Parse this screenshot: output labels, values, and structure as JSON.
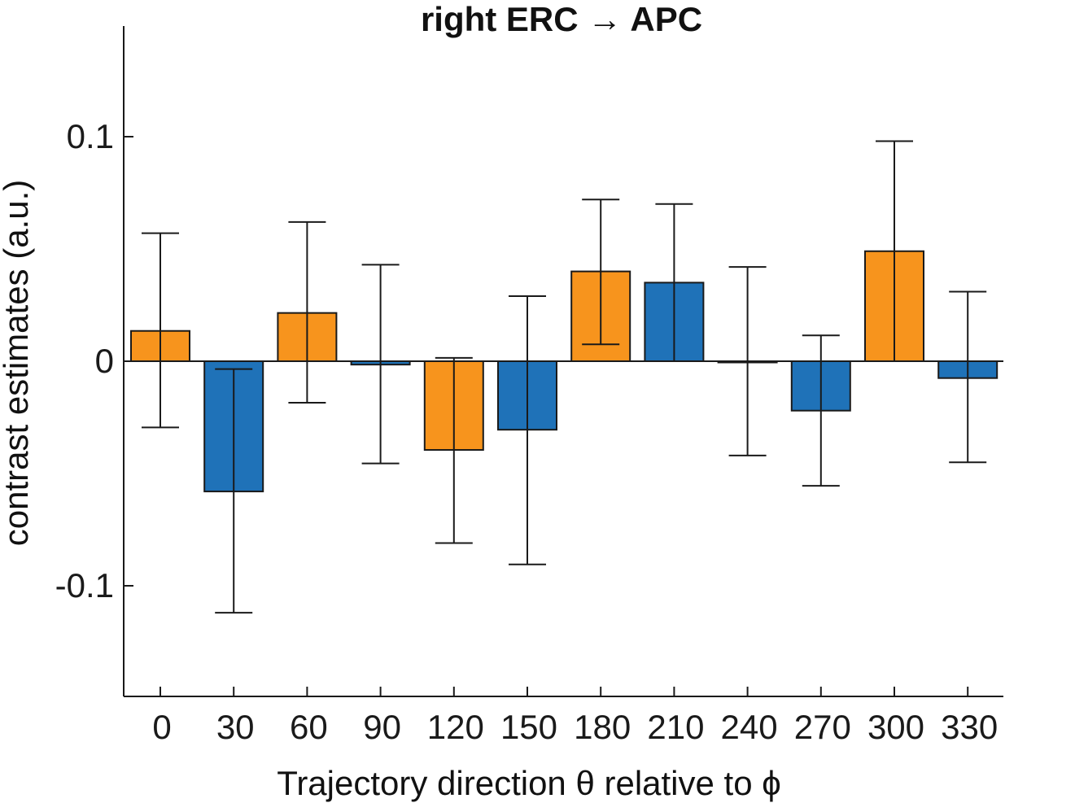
{
  "chart_data": {
    "type": "bar",
    "title": "right ERC → APC",
    "xlabel": "Trajectory direction θ relative to ϕ",
    "ylabel": "contrast estimates (a.u.)",
    "ylim": [
      -0.15,
      0.15
    ],
    "yticks": [
      0.1,
      0,
      -0.1
    ],
    "ytick_labels": [
      "0.1",
      "0",
      "-0.1"
    ],
    "categories": [
      "0",
      "30",
      "60",
      "90",
      "120",
      "150",
      "180",
      "210",
      "240",
      "270",
      "300",
      "330"
    ],
    "values": [
      0.0135,
      -0.058,
      0.0215,
      -0.0015,
      -0.0395,
      -0.0305,
      0.04,
      0.035,
      -0.0005,
      -0.022,
      0.049,
      -0.0075
    ],
    "error_upper": [
      0.057,
      -0.0035,
      0.062,
      0.043,
      0.0015,
      0.029,
      0.072,
      0.07,
      0.042,
      0.0115,
      0.098,
      0.031
    ],
    "error_lower": [
      -0.0295,
      -0.112,
      -0.0185,
      -0.0455,
      -0.081,
      -0.0905,
      0.0075,
      0.0,
      -0.042,
      -0.0555,
      0.0,
      -0.045
    ],
    "bar_colors": [
      "#F7941D",
      "#1F72B8",
      "#F7941D",
      "#1F72B8",
      "#F7941D",
      "#1F72B8",
      "#F7941D",
      "#1F72B8",
      "#F7941D",
      "#1F72B8",
      "#F7941D",
      "#1F72B8"
    ],
    "grid": false,
    "legend": "none"
  }
}
